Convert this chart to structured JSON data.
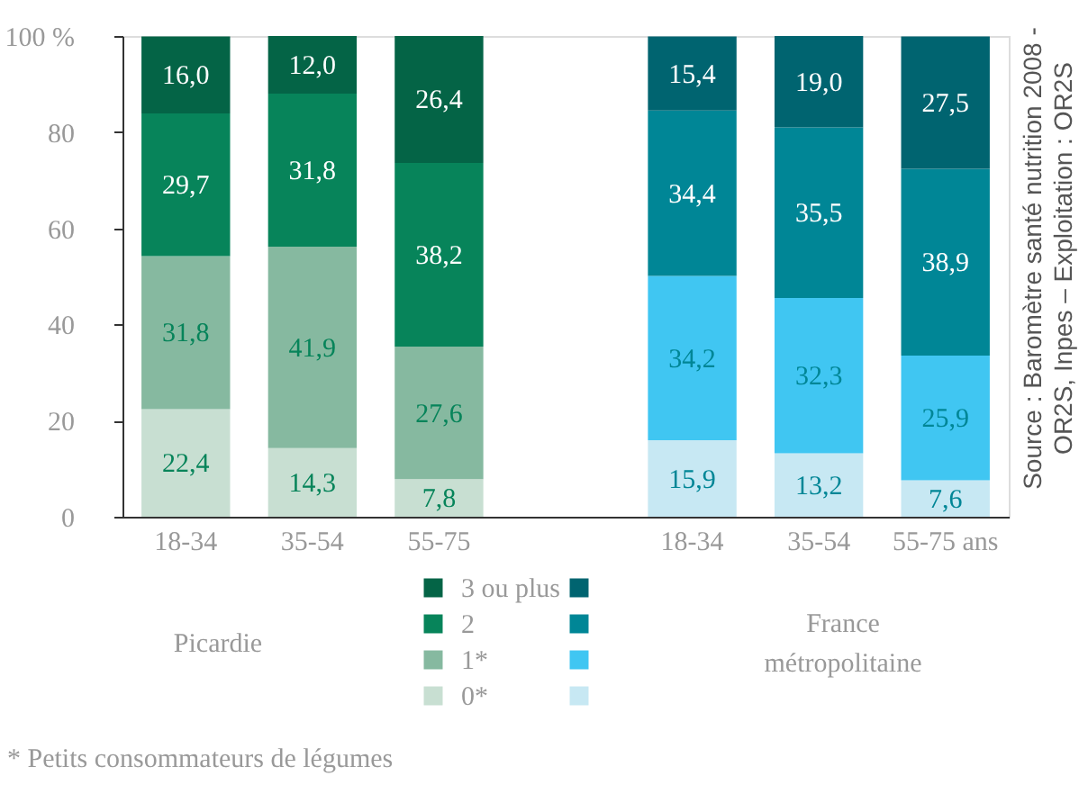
{
  "chart_data": {
    "type": "bar",
    "stacked": true,
    "categories": [
      "18-34",
      "35-54",
      "55-75",
      null,
      "18-34",
      "35-54",
      "55-75 ans"
    ],
    "series": [
      {
        "name": "0*",
        "colors": [
          "#c8dfd2",
          "#c8dfd2",
          "#c8dfd2",
          null,
          "#c7e8f3",
          "#c7e8f3",
          "#c7e8f3"
        ],
        "values": [
          22.4,
          14.3,
          7.8,
          null,
          15.9,
          13.2,
          7.6
        ],
        "value_labels": [
          "22,4",
          "14,3",
          "7,8",
          null,
          "15,9",
          "13,2",
          "7,6"
        ]
      },
      {
        "name": "1*",
        "colors": [
          "#86b9a0",
          "#86b9a0",
          "#86b9a0",
          null,
          "#40c6f2",
          "#40c6f2",
          "#40c6f2"
        ],
        "values": [
          31.8,
          41.9,
          27.6,
          null,
          34.2,
          32.3,
          25.9
        ],
        "value_labels": [
          "31,8",
          "41,9",
          "27,6",
          null,
          "34,2",
          "32,3",
          "25,9"
        ]
      },
      {
        "name": "2",
        "colors": [
          "#07845a",
          "#07845a",
          "#07845a",
          null,
          "#008696",
          "#008696",
          "#008696"
        ],
        "values": [
          29.7,
          31.8,
          38.2,
          null,
          34.4,
          35.5,
          38.9
        ],
        "value_labels": [
          "29,7",
          "31,8",
          "38,2",
          null,
          "34,4",
          "35,5",
          "38,9"
        ]
      },
      {
        "name": "3 ou plus",
        "colors": [
          "#046446",
          "#046446",
          "#046446",
          null,
          "#006470",
          "#006470",
          "#006470"
        ],
        "values": [
          16.0,
          12.0,
          26.4,
          null,
          15.4,
          19.0,
          27.5
        ],
        "value_labels": [
          "16,0",
          "12,0",
          "26,4",
          null,
          "15,4",
          "19,0",
          "27,5"
        ]
      }
    ],
    "ylim": [
      0,
      100
    ],
    "yticks": [
      0,
      20,
      40,
      60,
      80,
      {
        "value": 100,
        "label": "100 %"
      }
    ],
    "grid": false,
    "legend": "bottom",
    "annotations": [
      "Picardie",
      "France\nmétropolitaine",
      "Source : Baromètre santé nutrition 2008 -\nOR2S, Inpes – Exploitation : OR2S",
      "* Petits consommateurs de légumes"
    ]
  }
}
